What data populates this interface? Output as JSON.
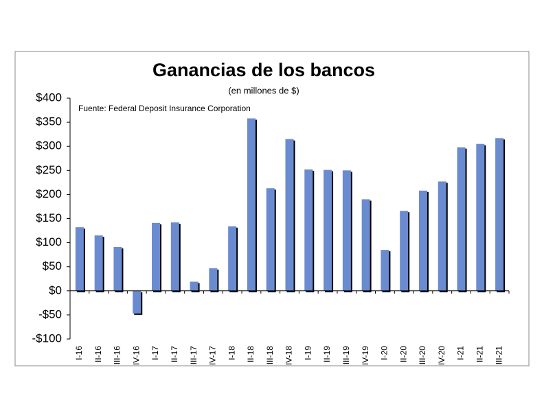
{
  "chart_data": {
    "type": "bar",
    "title": "Ganancias de los bancos",
    "subtitle": "(en millones de $)",
    "annotation": "Fuente: Federal Deposit Insurance Corporation",
    "categories": [
      "I-16",
      "II-16",
      "III-16",
      "IV-16",
      "I-17",
      "II-17",
      "III-17",
      "IV-17",
      "I-18",
      "II-18",
      "III-18",
      "IV-18",
      "I-19",
      "II-19",
      "III-19",
      "IV-19",
      "I-20",
      "II-20",
      "III-20",
      "IV-20",
      "I-21",
      "II-21",
      "III-21"
    ],
    "values": [
      132,
      115,
      91,
      -47,
      141,
      142,
      19,
      47,
      134,
      358,
      213,
      315,
      252,
      251,
      250,
      190,
      85,
      166,
      208,
      227,
      298,
      305,
      317
    ],
    "color": "#6a8bd0",
    "ylim": [
      -100,
      400
    ],
    "yticks": [
      {
        "value": -100,
        "label": "-$100"
      },
      {
        "value": -50,
        "label": "-$50"
      },
      {
        "value": 0,
        "label": "$0"
      },
      {
        "value": 50,
        "label": "$50"
      },
      {
        "value": 100,
        "label": "$100"
      },
      {
        "value": 150,
        "label": "$150"
      },
      {
        "value": 200,
        "label": "$200"
      },
      {
        "value": 250,
        "label": "$250"
      },
      {
        "value": 300,
        "label": "$300"
      },
      {
        "value": 350,
        "label": "$350"
      },
      {
        "value": 400,
        "label": "$400"
      }
    ]
  }
}
